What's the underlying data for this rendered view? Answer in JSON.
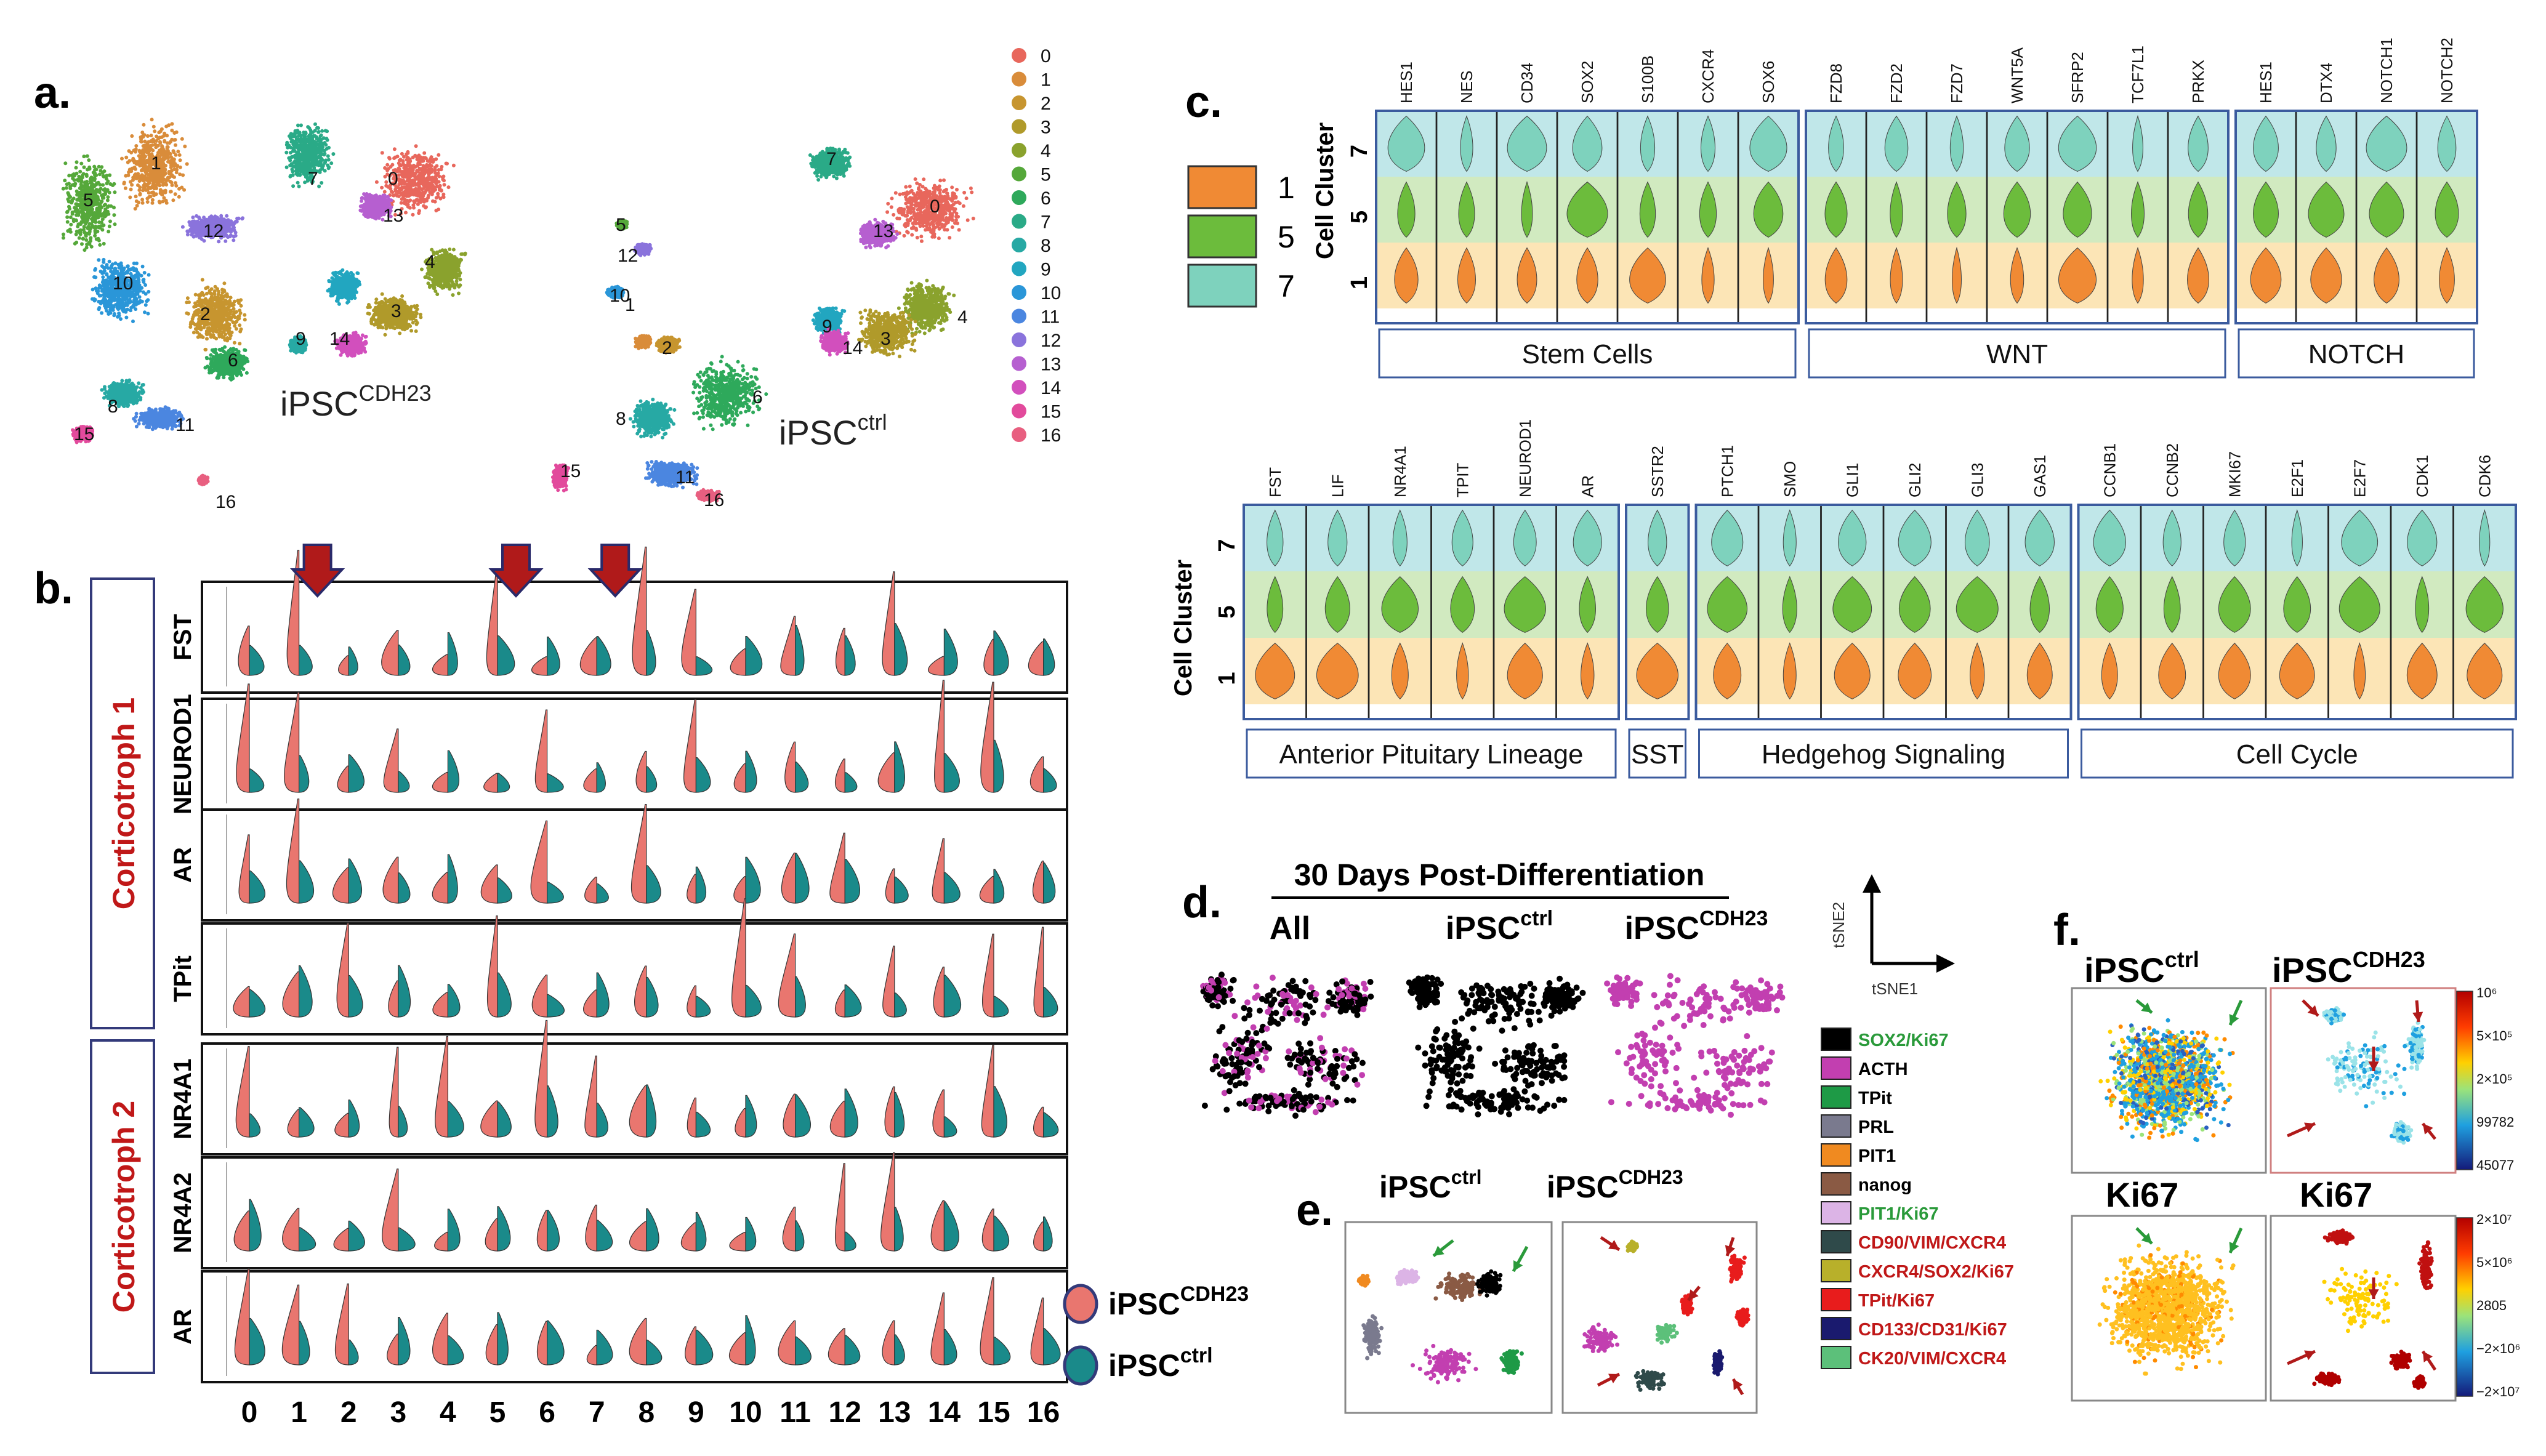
{
  "panels": {
    "a": "a.",
    "b": "b.",
    "c": "c.",
    "d": "d.",
    "e": "e.",
    "f": "f."
  },
  "colors": {
    "cdh23": "#e9766f",
    "ctrl": "#1a8a8a",
    "dark_red": "#9c1c1c",
    "box_blue": "#3b5b9e",
    "arrow_red": "#b01a1a",
    "arrow_green": "#2a9a3a",
    "cluster_1": "#f08a34",
    "cluster_5": "#6cbc3c",
    "cluster_7": "#7ed2bd",
    "band_7": "#b5e3e5",
    "band_5": "#c9e6b5",
    "band_1": "#fbe1a9"
  },
  "panel_a": {
    "label_cdh23": "iPSC",
    "label_cdh23_sup": "CDH23",
    "label_ctrl": "iPSC",
    "label_ctrl_sup": "ctrl",
    "clusters": [
      "0",
      "1",
      "2",
      "3",
      "4",
      "5",
      "6",
      "7",
      "8",
      "9",
      "10",
      "11",
      "12",
      "13",
      "14",
      "15",
      "16"
    ],
    "cluster_colors": [
      "#e8675c",
      "#d98c3a",
      "#c7952f",
      "#b09a2a",
      "#8aa22d",
      "#55a83a",
      "#2ea95b",
      "#2aaa87",
      "#27a9a4",
      "#22a6c0",
      "#2a96d8",
      "#4b86e0",
      "#8a73dc",
      "#b65fd0",
      "#d24fbd",
      "#e24a9c",
      "#e85f80"
    ],
    "cdh23_cluster_labels": [
      "1",
      "5",
      "7",
      "0",
      "13",
      "12",
      "10",
      "4",
      "2",
      "3",
      "6",
      "9",
      "14",
      "8",
      "11",
      "15",
      "16"
    ],
    "ctrl_cluster_labels": [
      "7",
      "0",
      "13",
      "5",
      "12",
      "10",
      "1",
      "2",
      "9",
      "14",
      "3",
      "4",
      "6",
      "8",
      "11",
      "15",
      "16"
    ]
  },
  "panel_b": {
    "group1_label": "Corticotroph 1",
    "group2_label": "Corticotroph 2",
    "genes": [
      "FST",
      "NEUROD1",
      "AR",
      "TPit",
      "NR4A1",
      "NR4A2",
      "AR"
    ],
    "x_clusters": [
      "0",
      "1",
      "2",
      "3",
      "4",
      "5",
      "6",
      "7",
      "8",
      "9",
      "10",
      "11",
      "12",
      "13",
      "14",
      "15",
      "16"
    ],
    "arrow_clusters": [
      "1",
      "5",
      "7"
    ],
    "legend_cdh23": "iPSC",
    "legend_cdh23_sup": "CDH23",
    "legend_ctrl": "iPSC",
    "legend_ctrl_sup": "ctrl"
  },
  "panel_c": {
    "legend_clusters": [
      "1",
      "5",
      "7"
    ],
    "y_label": "Cell Cluster",
    "y_ticks": [
      "7",
      "5",
      "1"
    ],
    "top_groups": [
      {
        "name": "Stem Cells",
        "genes": [
          "HES1",
          "NES",
          "CD34",
          "SOX2",
          "S100B",
          "CXCR4",
          "SOX6"
        ]
      },
      {
        "name": "WNT",
        "genes": [
          "FZD8",
          "FZD2",
          "FZD7",
          "WNT5A",
          "SFRP2",
          "TCF7L1",
          "PRKX"
        ]
      },
      {
        "name": "NOTCH",
        "genes": [
          "HES1",
          "DTX4",
          "NOTCH1",
          "NOTCH2"
        ]
      }
    ],
    "bottom_groups": [
      {
        "name": "Anterior Pituitary Lineage",
        "genes": [
          "FST",
          "LIF",
          "NR4A1",
          "TPIT",
          "NEUROD1",
          "AR"
        ]
      },
      {
        "name": "SST",
        "genes": [
          "SSTR2"
        ]
      },
      {
        "name": "Hedgehog Signaling",
        "genes": [
          "PTCH1",
          "SMO",
          "GLI1",
          "GLI2",
          "GLI3",
          "GAS1"
        ]
      },
      {
        "name": "Cell Cycle",
        "genes": [
          "CCNB1",
          "CCNB2",
          "MKI67",
          "E2F1",
          "E2F7",
          "CDK1",
          "CDK6"
        ]
      }
    ]
  },
  "panel_d": {
    "title": "30 Days Post-Differentiation",
    "col_all": "All",
    "col_ctrl": "iPSC",
    "col_ctrl_sup": "ctrl",
    "col_cdh23": "iPSC",
    "col_cdh23_sup": "CDH23",
    "axis_y": "tSNE2",
    "axis_x": "tSNE1"
  },
  "marker_legend": [
    {
      "label": "SOX2/Ki67",
      "swatch": "#000000",
      "text": "#2a9a3a"
    },
    {
      "label": "ACTH",
      "swatch": "#c23fb0",
      "text": "#000000"
    },
    {
      "label": "TPit",
      "swatch": "#1e9a46",
      "text": "#000000"
    },
    {
      "label": "PRL",
      "swatch": "#7a7a8e",
      "text": "#000000"
    },
    {
      "label": "PIT1",
      "swatch": "#f08a20",
      "text": "#000000"
    },
    {
      "label": "nanog",
      "swatch": "#8a5a44",
      "text": "#000000"
    },
    {
      "label": "PIT1/Ki67",
      "swatch": "#dcb4e6",
      "text": "#2a9a3a"
    },
    {
      "label": "CD90/VIM/CXCR4",
      "swatch": "#2f4a4a",
      "text": "#c01818"
    },
    {
      "label": "CXCR4/SOX2/Ki67",
      "swatch": "#b8b02a",
      "text": "#c01818"
    },
    {
      "label": "TPit/Ki67",
      "swatch": "#e81c1c",
      "text": "#c01818"
    },
    {
      "label": "CD133/CD31/Ki67",
      "swatch": "#1a1a6e",
      "text": "#c01818"
    },
    {
      "label": "CK20/VIM/CXCR4",
      "swatch": "#5cc07a",
      "text": "#c01818"
    }
  ],
  "panel_e": {
    "label_ctrl": "iPSC",
    "label_ctrl_sup": "ctrl",
    "label_cdh23": "iPSC",
    "label_cdh23_sup": "CDH23"
  },
  "panel_f": {
    "label_ctrl": "iPSC",
    "label_ctrl_sup": "ctrl",
    "label_cdh23": "iPSC",
    "label_cdh23_sup": "CDH23",
    "ki67_left": "Ki67",
    "ki67_right": "Ki67",
    "scale_top": [
      "10⁶",
      "5×10⁵",
      "2×10⁵",
      "99782",
      "45077"
    ],
    "scale_bottom": [
      "2×10⁷",
      "5×10⁶",
      "2805",
      "−2×10⁶",
      "−2×10⁷"
    ]
  }
}
